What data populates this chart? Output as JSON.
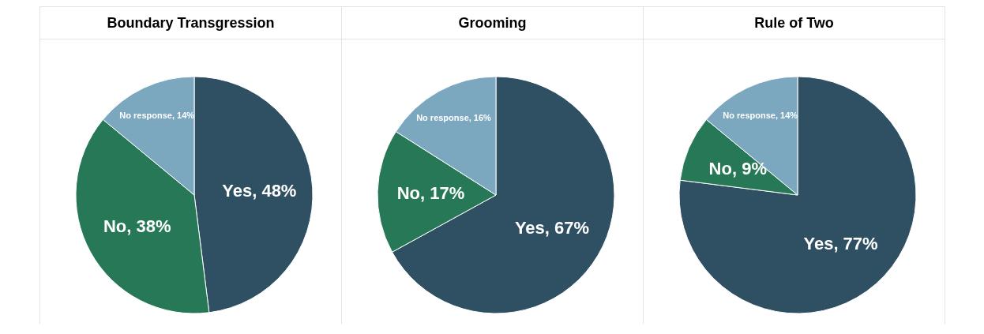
{
  "chart_data": [
    {
      "type": "pie",
      "title": "Boundary Transgression",
      "categories": [
        "Yes",
        "No",
        "No response"
      ],
      "values": [
        48,
        38,
        14
      ],
      "colors": [
        "#2f4f62",
        "#277856",
        "#7ba8bf"
      ],
      "value_labels": [
        "48%",
        "38%",
        "14%"
      ]
    },
    {
      "type": "pie",
      "title": "Grooming",
      "categories": [
        "Yes",
        "No",
        "No response"
      ],
      "values": [
        67,
        17,
        16
      ],
      "colors": [
        "#2f4f62",
        "#277856",
        "#7ba8bf"
      ],
      "value_labels": [
        "67%",
        "17%",
        "16%"
      ]
    },
    {
      "type": "pie",
      "title": "Rule of Two",
      "categories": [
        "Yes",
        "No",
        "No response"
      ],
      "values": [
        77,
        9,
        14
      ],
      "colors": [
        "#2f4f62",
        "#277856",
        "#7ba8bf"
      ],
      "value_labels": [
        "77%",
        "9%",
        "14%"
      ]
    }
  ]
}
